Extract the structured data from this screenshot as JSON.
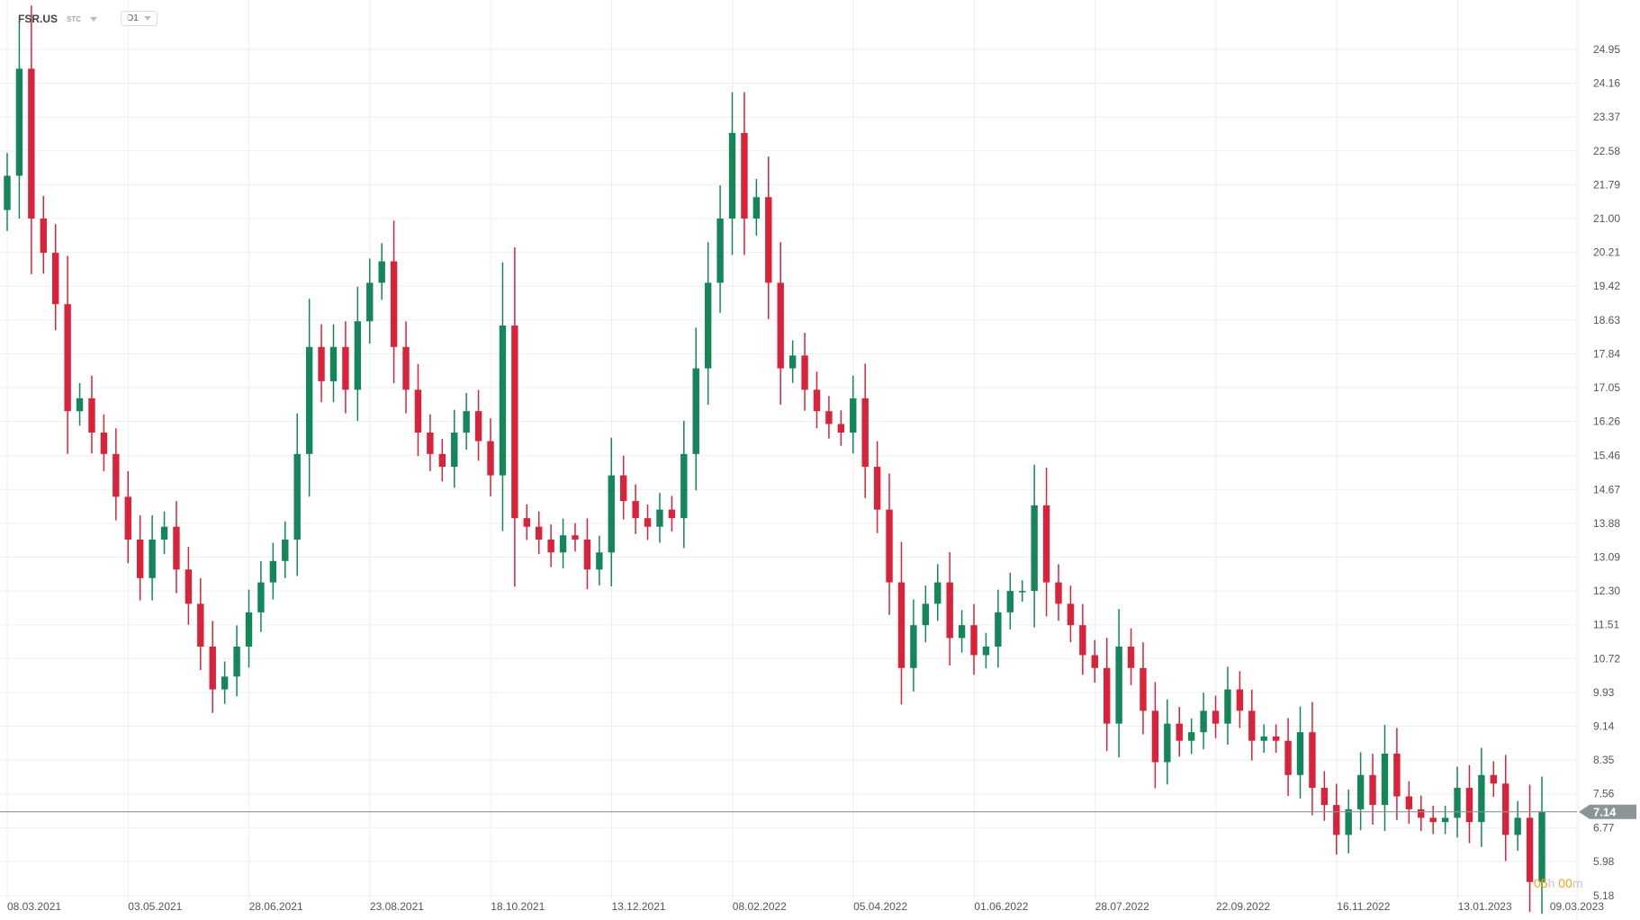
{
  "header": {
    "symbol": "FSR.US",
    "exchange": "STC",
    "timeframe": "D1"
  },
  "countdown": {
    "hours": "05",
    "h": "h",
    "minutes": "00",
    "m": "m"
  },
  "colors": {
    "up": "#15865a",
    "down": "#d9233a",
    "price_line": "#8a9598",
    "grid": "#efefef"
  },
  "chart_data": {
    "type": "candlestick",
    "title": "FSR.US D1",
    "ylim": [
      5.18,
      24.95
    ],
    "y_ticks": [
      "24.95",
      "24.16",
      "23.37",
      "22.58",
      "21.79",
      "21.00",
      "20.21",
      "19.42",
      "18.63",
      "17.84",
      "17.05",
      "16.26",
      "15.46",
      "14.67",
      "13.88",
      "13.09",
      "12.30",
      "11.51",
      "10.72",
      "9.93",
      "9.14",
      "8.35",
      "7.56",
      "6.77",
      "5.98",
      "5.18"
    ],
    "x_ticks": [
      "08.03.2021",
      "03.05.2021",
      "28.06.2021",
      "23.08.2021",
      "18.10.2021",
      "13.12.2021",
      "08.02.2022",
      "05.04.2022",
      "01.06.2022",
      "28.07.2022",
      "22.09.2022",
      "16.11.2022",
      "13.01.2023",
      "09.03.2023"
    ],
    "current_price": "7.14",
    "closes": [
      22.0,
      24.5,
      21.0,
      20.2,
      19.0,
      16.5,
      16.8,
      16.0,
      15.5,
      14.5,
      13.5,
      12.6,
      13.5,
      13.8,
      12.8,
      12.0,
      11.0,
      10.0,
      10.3,
      11.0,
      11.8,
      12.5,
      13.0,
      13.5,
      15.5,
      18.0,
      17.2,
      18.0,
      17.0,
      18.6,
      19.5,
      20.0,
      18.0,
      17.0,
      16.0,
      15.5,
      15.2,
      16.0,
      16.5,
      15.8,
      15.0,
      18.5,
      14.0,
      13.8,
      13.5,
      13.2,
      13.6,
      13.5,
      12.8,
      13.2,
      15.0,
      14.4,
      14.0,
      13.8,
      14.2,
      14.0,
      15.5,
      17.5,
      19.5,
      21.0,
      23.0,
      21.0,
      21.5,
      19.5,
      17.5,
      17.8,
      17.0,
      16.5,
      16.2,
      16.0,
      16.8,
      15.2,
      14.2,
      12.5,
      10.5,
      11.5,
      12.0,
      12.5,
      11.2,
      11.5,
      10.8,
      11.0,
      11.8,
      12.3,
      12.3,
      14.3,
      12.5,
      12.0,
      11.5,
      10.8,
      10.5,
      9.2,
      11.0,
      10.5,
      9.5,
      8.3,
      9.2,
      8.8,
      9.0,
      9.5,
      9.2,
      10.0,
      9.5,
      8.8,
      8.9,
      8.8,
      8.0,
      9.0,
      7.7,
      7.3,
      6.6,
      7.2,
      8.0,
      7.3,
      8.5,
      7.5,
      7.2,
      7.0,
      6.9,
      7.0,
      7.7,
      6.9,
      8.0,
      7.8,
      6.6,
      7.0,
      5.5,
      7.14
    ]
  }
}
